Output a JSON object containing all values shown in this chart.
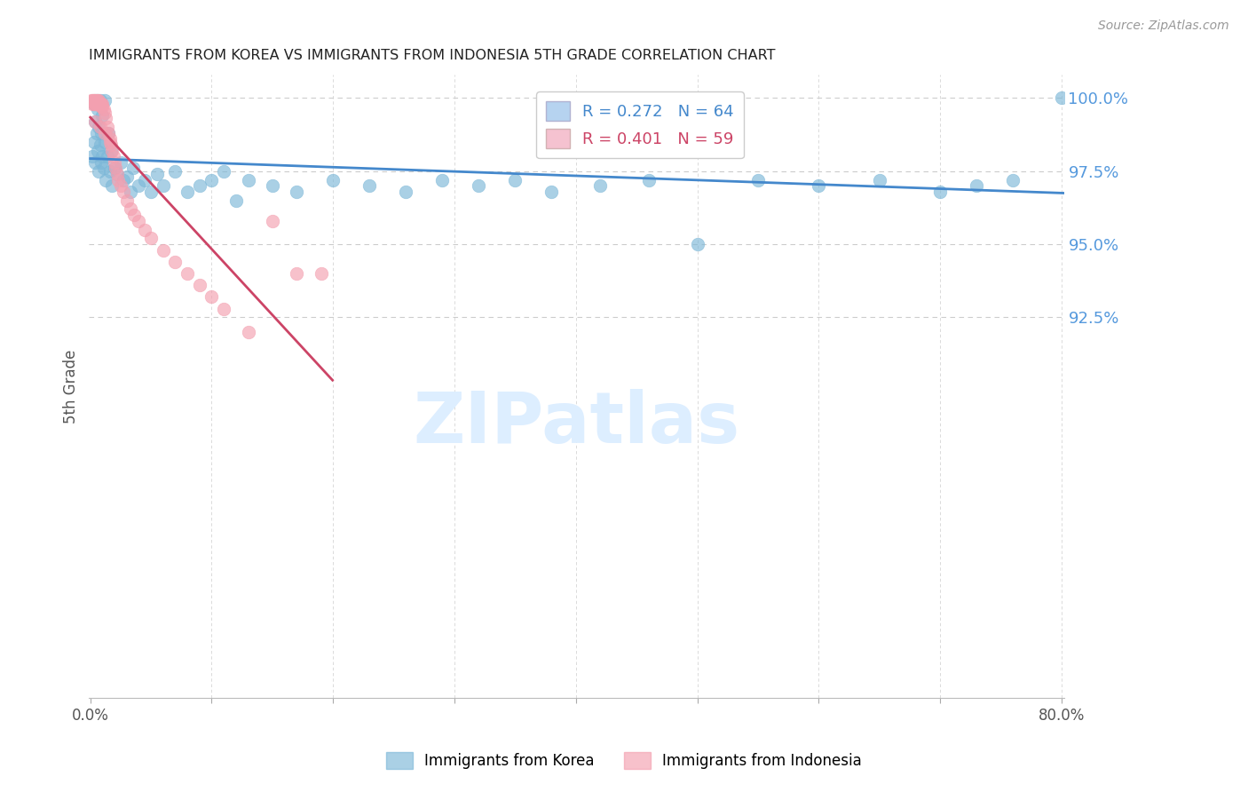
{
  "title": "IMMIGRANTS FROM KOREA VS IMMIGRANTS FROM INDONESIA 5TH GRADE CORRELATION CHART",
  "source": "Source: ZipAtlas.com",
  "ylabel": "5th Grade",
  "ytick_labels": [
    "100.0%",
    "97.5%",
    "95.0%",
    "92.5%"
  ],
  "ytick_values": [
    1.0,
    0.975,
    0.95,
    0.925
  ],
  "ymin": 0.795,
  "ymax": 1.008,
  "xmin": -0.001,
  "xmax": 0.802,
  "korea_R": 0.272,
  "korea_N": 64,
  "indonesia_R": 0.401,
  "indonesia_N": 59,
  "korea_color": "#7db8d8",
  "indonesia_color": "#f4a0b0",
  "korea_line_color": "#4488cc",
  "indonesia_line_color": "#cc4466",
  "background_color": "#ffffff",
  "grid_color": "#cccccc",
  "title_color": "#222222",
  "axis_label_color": "#555555",
  "right_tick_color": "#5599dd",
  "watermark_color": "#ddeeff",
  "legend_korea_fill": "#aaccee",
  "legend_indonesia_fill": "#f4b8c8",
  "korea_x": [
    0.002,
    0.003,
    0.003,
    0.004,
    0.004,
    0.005,
    0.005,
    0.006,
    0.006,
    0.007,
    0.007,
    0.008,
    0.008,
    0.009,
    0.009,
    0.01,
    0.01,
    0.011,
    0.012,
    0.012,
    0.013,
    0.014,
    0.015,
    0.016,
    0.017,
    0.018,
    0.02,
    0.022,
    0.025,
    0.027,
    0.03,
    0.033,
    0.035,
    0.04,
    0.045,
    0.05,
    0.055,
    0.06,
    0.07,
    0.08,
    0.09,
    0.1,
    0.11,
    0.12,
    0.13,
    0.15,
    0.17,
    0.2,
    0.23,
    0.26,
    0.29,
    0.32,
    0.35,
    0.38,
    0.42,
    0.46,
    0.5,
    0.55,
    0.6,
    0.65,
    0.7,
    0.73,
    0.76,
    0.8
  ],
  "korea_y": [
    0.98,
    0.985,
    0.998,
    0.978,
    0.992,
    0.988,
    0.999,
    0.982,
    0.996,
    0.975,
    0.99,
    0.984,
    0.999,
    0.978,
    0.988,
    0.98,
    0.994,
    0.976,
    0.985,
    0.999,
    0.972,
    0.98,
    0.988,
    0.975,
    0.982,
    0.97,
    0.976,
    0.974,
    0.978,
    0.972,
    0.973,
    0.968,
    0.976,
    0.97,
    0.972,
    0.968,
    0.974,
    0.97,
    0.975,
    0.968,
    0.97,
    0.972,
    0.975,
    0.965,
    0.972,
    0.97,
    0.968,
    0.972,
    0.97,
    0.968,
    0.972,
    0.97,
    0.972,
    0.968,
    0.97,
    0.972,
    0.95,
    0.972,
    0.97,
    0.972,
    0.968,
    0.97,
    0.972,
    1.0
  ],
  "indonesia_x": [
    0.001,
    0.002,
    0.002,
    0.003,
    0.003,
    0.003,
    0.004,
    0.004,
    0.004,
    0.005,
    0.005,
    0.005,
    0.006,
    0.006,
    0.006,
    0.007,
    0.007,
    0.007,
    0.008,
    0.008,
    0.009,
    0.009,
    0.01,
    0.01,
    0.011,
    0.012,
    0.013,
    0.014,
    0.015,
    0.016,
    0.017,
    0.018,
    0.019,
    0.02,
    0.021,
    0.022,
    0.023,
    0.025,
    0.027,
    0.03,
    0.033,
    0.036,
    0.04,
    0.045,
    0.05,
    0.06,
    0.07,
    0.08,
    0.09,
    0.1,
    0.11,
    0.13,
    0.15,
    0.17,
    0.19,
    0.016,
    0.012,
    0.008,
    0.004
  ],
  "indonesia_y": [
    0.999,
    0.998,
    0.999,
    0.999,
    0.998,
    0.999,
    0.998,
    0.999,
    0.998,
    0.998,
    0.999,
    0.998,
    0.998,
    0.999,
    0.998,
    0.998,
    0.999,
    0.998,
    0.998,
    0.998,
    0.998,
    0.997,
    0.998,
    0.997,
    0.996,
    0.995,
    0.993,
    0.99,
    0.988,
    0.986,
    0.984,
    0.982,
    0.98,
    0.978,
    0.976,
    0.974,
    0.972,
    0.97,
    0.968,
    0.965,
    0.962,
    0.96,
    0.958,
    0.955,
    0.952,
    0.948,
    0.944,
    0.94,
    0.936,
    0.932,
    0.928,
    0.92,
    0.958,
    0.94,
    0.94,
    0.985,
    0.988,
    0.99,
    0.992
  ]
}
